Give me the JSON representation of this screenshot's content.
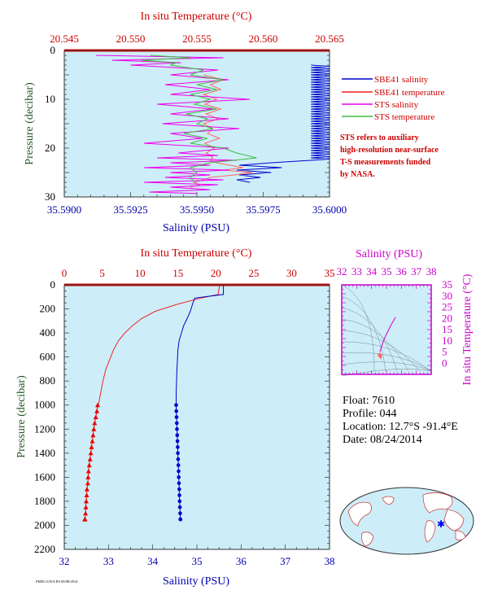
{
  "chart_data": [
    {
      "type": "line",
      "panel": "top-profile",
      "top_axis": {
        "label": "In situ Temperature (°C)",
        "range": [
          20.545,
          20.565
        ],
        "ticks": [
          "20.545",
          "20.550",
          "20.555",
          "20.560",
          "20.565"
        ]
      },
      "bottom_axis": {
        "label": "Salinity (PSU)",
        "range": [
          35.59,
          35.6
        ],
        "ticks": [
          "35.5900",
          "35.5925",
          "35.5950",
          "35.5975",
          "35.6000"
        ]
      },
      "y_axis": {
        "label": "Pressure (decibar)",
        "range": [
          0,
          30
        ],
        "inverted": true,
        "ticks": [
          "0",
          "10",
          "20",
          "30"
        ]
      },
      "legend": {
        "placement": "right",
        "items": [
          {
            "label": "SBE41 salinity",
            "color": "#0000cc"
          },
          {
            "label": "SBE41 temperature",
            "color": "#ee2222"
          },
          {
            "label": "STS salinity",
            "color": "#ee00ee"
          },
          {
            "label": "STS temperature",
            "color": "#44bb44"
          }
        ]
      },
      "note_lines": [
        "STS refers to auxiliary",
        "high-resolution near-surface",
        "T-S measurements funded",
        "by NASA."
      ],
      "series": [
        {
          "name": "SBE41 salinity",
          "axis": "bottom",
          "x": [
            35.5993,
            35.6,
            35.5993,
            35.6,
            35.5993,
            35.6,
            35.5993,
            35.6,
            35.5993,
            35.6,
            35.5993,
            35.6,
            35.5993,
            35.6,
            35.5993,
            35.6,
            35.5993,
            35.6,
            35.5993,
            35.6,
            35.5993,
            35.6,
            35.5993,
            35.6,
            35.5993,
            35.6,
            35.5993,
            35.6,
            35.5993,
            35.6,
            35.5993,
            35.6,
            35.5993,
            35.6,
            35.5993,
            35.6,
            35.5993,
            35.6,
            35.5993,
            35.6,
            35.5993,
            35.6,
            35.5993,
            35.6,
            35.5993,
            35.6,
            35.5993,
            35.6,
            35.5993,
            35.6,
            35.5993,
            35.6,
            35.5993,
            35.6,
            35.5993,
            35.6,
            35.5993,
            35.6,
            35.5993,
            35.6,
            35.5993,
            35.6,
            35.5993,
            35.6,
            35.5993,
            35.6,
            35.5993,
            35.6,
            35.5993,
            35.6,
            35.5993,
            35.6,
            35.5993,
            35.6,
            35.5993,
            35.6,
            35.5993,
            35.6,
            35.5993,
            35.5978,
            35.5966,
            35.5982,
            35.5965,
            35.5978,
            35.5966,
            35.5974,
            35.5965,
            35.597
          ],
          "y": [
            3,
            3.25,
            3.5,
            3.75,
            4,
            4.25,
            4.5,
            4.75,
            5,
            5.25,
            5.5,
            5.75,
            6,
            6.25,
            6.5,
            6.75,
            7,
            7.25,
            7.5,
            7.75,
            8,
            8.25,
            8.5,
            8.75,
            9,
            9.25,
            9.5,
            9.75,
            10,
            10.25,
            10.5,
            10.75,
            11,
            11.25,
            11.5,
            11.75,
            12,
            12.25,
            12.5,
            12.75,
            13,
            13.25,
            13.5,
            13.75,
            14,
            14.25,
            14.5,
            14.75,
            15,
            15.25,
            15.5,
            15.75,
            16,
            16.25,
            16.5,
            16.75,
            17,
            17.25,
            17.5,
            17.75,
            18,
            18.25,
            18.5,
            18.75,
            19,
            19.25,
            19.5,
            19.75,
            20,
            20.25,
            20.5,
            20.75,
            21,
            21.25,
            21.5,
            21.75,
            22,
            22.25,
            22.5,
            23,
            23.5,
            24,
            24.5,
            25,
            25.5,
            26,
            26.5,
            27
          ]
        },
        {
          "name": "SBE41 temperature",
          "axis": "top",
          "x": [
            20.5555,
            20.557,
            20.556,
            20.5568,
            20.5555,
            20.5565,
            20.5556,
            20.5568,
            20.5557,
            20.5566,
            20.5555,
            20.5562,
            20.5558,
            20.5567,
            20.5556,
            20.5563,
            20.5557,
            20.556,
            20.5562,
            20.556,
            20.5565,
            20.5575,
            20.5585,
            20.557,
            20.5592,
            20.5578,
            20.556,
            20.5555,
            20.5548,
            20.5552,
            20.5545
          ],
          "y": [
            5,
            6,
            7,
            8,
            9,
            10,
            11,
            12,
            13,
            14,
            15,
            16,
            17,
            18,
            19,
            20,
            21,
            21.5,
            22,
            22.5,
            23,
            23.5,
            24,
            24.5,
            25,
            25.5,
            26,
            26.5,
            27,
            27.5,
            28
          ]
        },
        {
          "name": "STS salinity",
          "axis": "bottom",
          "x": [
            35.5912,
            35.596,
            35.5918,
            35.5944,
            35.5925,
            35.5958,
            35.594,
            35.5962,
            35.5938,
            35.5955,
            35.594,
            35.597,
            35.5935,
            35.5956,
            35.594,
            35.5962,
            35.5937,
            35.5966,
            35.594,
            35.5952,
            35.593,
            35.5962,
            35.5943,
            35.5958,
            35.5935,
            35.5965,
            35.594,
            35.5955,
            35.593,
            35.5962,
            35.594,
            35.5955,
            35.5938,
            35.596,
            35.593,
            35.5958,
            35.594,
            35.5955,
            35.5932,
            35.595
          ],
          "y": [
            1,
            1.5,
            2,
            2.5,
            3,
            4,
            5,
            6,
            7,
            8,
            9,
            10,
            11,
            12,
            13,
            14,
            15,
            16,
            17,
            18,
            19,
            20,
            21,
            21.5,
            22,
            22.5,
            23,
            23.5,
            24,
            24.5,
            25,
            25.5,
            26,
            26.5,
            27,
            27.5,
            28,
            28.5,
            29,
            29.3
          ]
        },
        {
          "name": "STS temperature",
          "axis": "top",
          "x": [
            20.5515,
            20.5545,
            20.5508,
            20.5535,
            20.553,
            20.5555,
            20.5545,
            20.557,
            20.555,
            20.5565,
            20.5545,
            20.556,
            20.5548,
            20.5565,
            20.5542,
            20.5558,
            20.555,
            20.5562,
            20.554,
            20.5558,
            20.5545,
            20.557,
            20.558,
            20.5595,
            20.556,
            20.5545,
            20.555,
            20.5545,
            20.5548
          ],
          "y": [
            1,
            1.5,
            2,
            2.5,
            3,
            4,
            5,
            6,
            7,
            8,
            9,
            10,
            11,
            12,
            13,
            14,
            15,
            16,
            17,
            18,
            19,
            20,
            21,
            22,
            23,
            24,
            25,
            26,
            27
          ]
        }
      ]
    },
    {
      "type": "line",
      "panel": "full-profile",
      "top_axis": {
        "label": "In situ Temperature (°C)",
        "range": [
          0,
          35
        ],
        "ticks": [
          "0",
          "5",
          "10",
          "15",
          "20",
          "25",
          "30",
          "35"
        ]
      },
      "bottom_axis": {
        "label": "Salinity (PSU)",
        "range": [
          32,
          38
        ],
        "ticks": [
          "32",
          "33",
          "34",
          "35",
          "36",
          "37",
          "38"
        ]
      },
      "y_axis": {
        "label": "Pressure (decibar)",
        "range": [
          0,
          2200
        ],
        "inverted": true,
        "ticks": [
          "0",
          "200",
          "400",
          "600",
          "800",
          "1000",
          "1200",
          "1400",
          "1600",
          "1800",
          "2000",
          "2200"
        ]
      },
      "series": [
        {
          "name": "temperature",
          "axis": "top",
          "x": [
            20.5,
            20.3,
            18,
            15,
            12,
            10.2,
            9,
            8,
            7.2,
            6.5,
            6,
            5.5,
            5.1,
            4.8,
            4.5
          ],
          "y": [
            0,
            80,
            110,
            160,
            220,
            280,
            340,
            400,
            460,
            540,
            620,
            700,
            800,
            900,
            1000
          ]
        },
        {
          "name": "salinity",
          "axis": "bottom",
          "x": [
            35.6,
            35.6,
            34.95,
            34.9,
            34.85,
            34.78,
            34.7,
            34.65,
            34.6,
            34.57,
            34.56,
            34.55,
            34.54,
            34.53,
            34.53
          ],
          "y": [
            0,
            80,
            110,
            160,
            220,
            280,
            340,
            400,
            460,
            540,
            620,
            700,
            800,
            900,
            1000
          ]
        },
        {
          "name": "temperature-bottle",
          "axis": "top",
          "x": [
            4.4,
            4.3,
            4.15,
            4,
            3.9,
            3.8,
            3.7,
            3.6,
            3.5,
            3.4,
            3.3,
            3.2,
            3.15,
            3.1,
            3.0,
            2.95,
            2.9,
            2.85,
            2.8,
            2.75,
            2.7
          ],
          "y": [
            1000,
            1050,
            1100,
            1150,
            1200,
            1250,
            1300,
            1350,
            1400,
            1450,
            1500,
            1550,
            1600,
            1650,
            1700,
            1750,
            1800,
            1850,
            1900,
            1950,
            1950
          ]
        },
        {
          "name": "salinity-bottle",
          "axis": "bottom",
          "x": [
            34.53,
            34.535,
            34.54,
            34.545,
            34.55,
            34.555,
            34.56,
            34.565,
            34.57,
            34.575,
            34.58,
            34.585,
            34.59,
            34.595,
            34.6,
            34.605,
            34.61,
            34.615,
            34.62,
            34.625,
            34.63
          ],
          "y": [
            1000,
            1050,
            1100,
            1150,
            1200,
            1250,
            1300,
            1350,
            1400,
            1450,
            1500,
            1550,
            1600,
            1650,
            1700,
            1750,
            1800,
            1850,
            1900,
            1950,
            1950
          ]
        }
      ]
    },
    {
      "type": "scatter",
      "panel": "ts-diagram",
      "top_axis": {
        "label": "Salinity (PSU)",
        "range": [
          32,
          38
        ],
        "ticks": [
          "32",
          "33",
          "34",
          "35",
          "36",
          "37",
          "38"
        ]
      },
      "right_axis": {
        "label": "In situ Temperature (°C)",
        "range": [
          -5,
          35
        ],
        "ticks": [
          "0",
          "5",
          "10",
          "15",
          "20",
          "25",
          "30",
          "35"
        ]
      },
      "series": [
        {
          "name": "ts-upper",
          "x": [
            35.6,
            35.3,
            35.0,
            34.8,
            34.7,
            34.6,
            34.55
          ],
          "y": [
            20.5,
            17,
            13,
            10,
            8,
            6,
            5
          ]
        },
        {
          "name": "ts-deep",
          "x": [
            34.55,
            34.58,
            34.62,
            34.6,
            34.5,
            34.52
          ],
          "y": [
            4.5,
            3.8,
            3.2,
            2.8,
            3.5,
            4.2
          ]
        }
      ]
    }
  ],
  "info": {
    "float": "Float:  7610",
    "profile": "Profile:  044",
    "location": "Location:  12.7°S  -91.4°E",
    "date": "Date:  08/24/2014"
  },
  "footnote": "PMEL/UW/LPA 09/08/2014",
  "colors": {
    "panel_bg": "#cdeef8",
    "salinity": "#0000cc",
    "temperature": "#ee2222",
    "ts": "#cc00cc",
    "axis_red": "#cc0000",
    "axis_blue": "#0000aa",
    "pressure_label": "#225522"
  }
}
